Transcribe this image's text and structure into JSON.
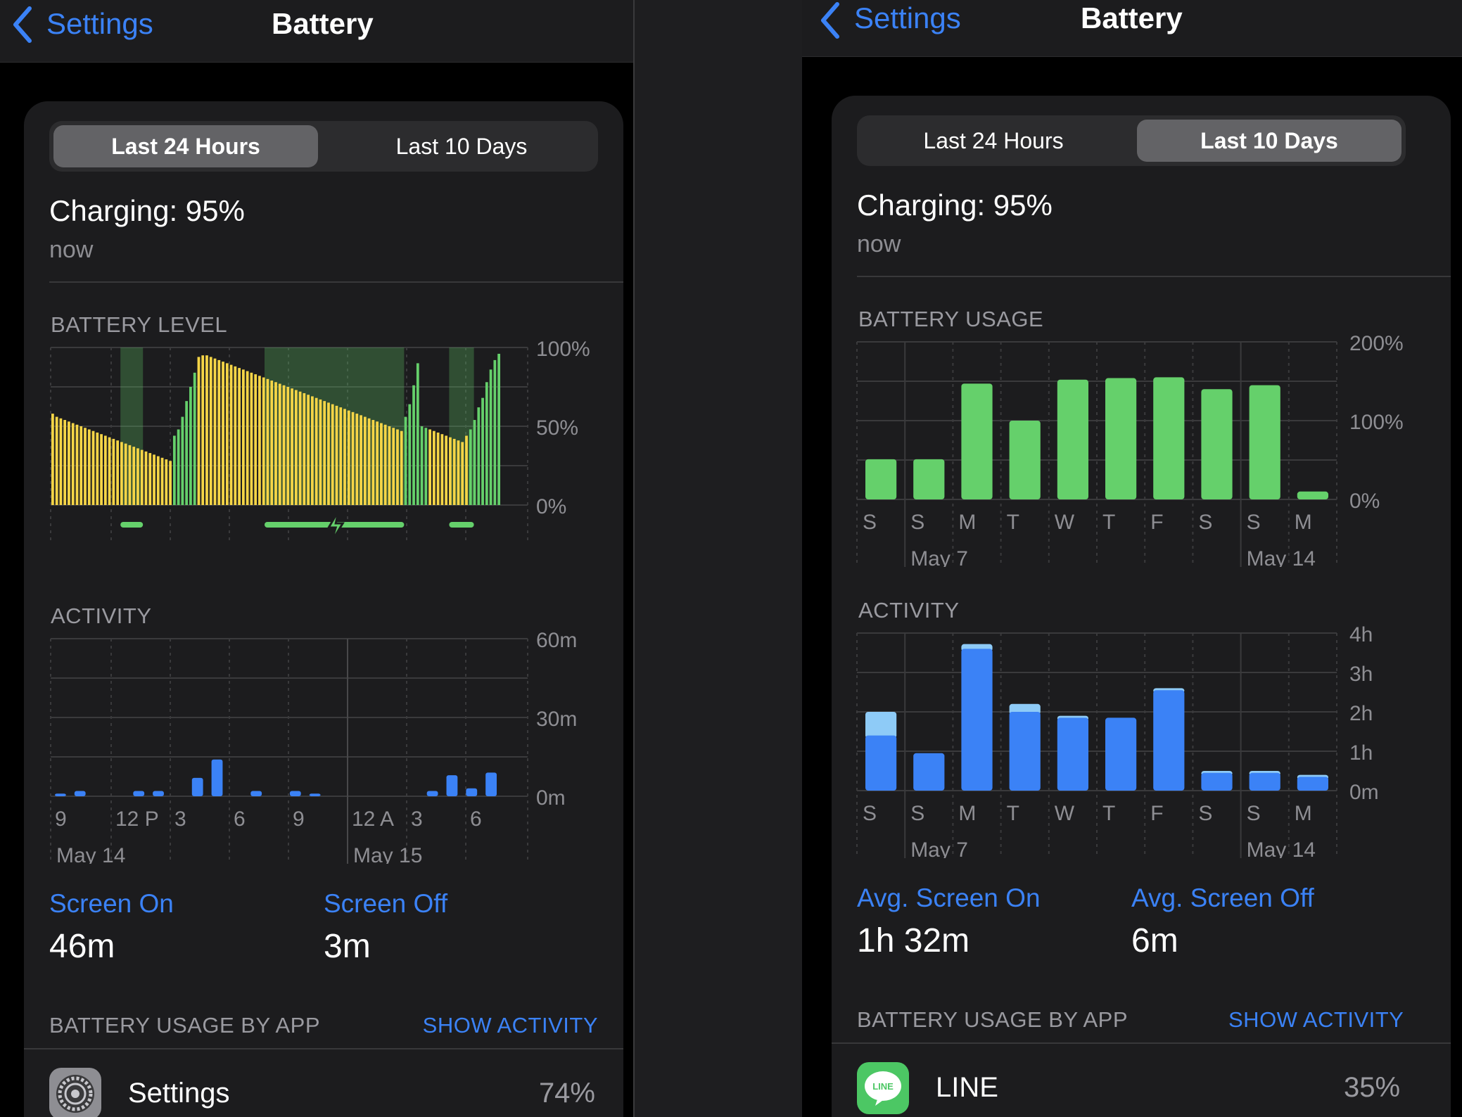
{
  "left": {
    "nav": {
      "back_label": "Settings",
      "title": "Battery"
    },
    "tabs": [
      "Last 24 Hours",
      "Last 10 Days"
    ],
    "active_tab": 0,
    "status": {
      "title": "Charging: 95%",
      "time": "now"
    },
    "battery_level": {
      "header": "BATTERY LEVEL",
      "y_ticks": [
        "100%",
        "50%",
        "0%"
      ],
      "x_ticks": [
        "9",
        "12 P",
        "3",
        "6",
        "9",
        "12 A",
        "3",
        "6"
      ]
    },
    "activity": {
      "header": "ACTIVITY",
      "y_ticks": [
        "60m",
        "30m",
        "0m"
      ],
      "x_ticks": [
        "9",
        "12 P",
        "3",
        "6",
        "9",
        "12 A",
        "3",
        "6"
      ],
      "dates": [
        "May 14",
        "May 15"
      ]
    },
    "stats": [
      {
        "label": "Screen On",
        "value": "46m"
      },
      {
        "label": "Screen Off",
        "value": "3m"
      }
    ],
    "apps_header": "BATTERY USAGE BY APP",
    "show_activity": "SHOW ACTIVITY",
    "app": {
      "name": "Settings",
      "percent": "74%",
      "icon": "settings-gear-icon"
    }
  },
  "right": {
    "nav": {
      "back_label": "Settings",
      "title": "Battery"
    },
    "tabs": [
      "Last 24 Hours",
      "Last 10 Days"
    ],
    "active_tab": 1,
    "status": {
      "title": "Charging: 95%",
      "time": "now"
    },
    "battery_usage": {
      "header": "BATTERY USAGE",
      "y_ticks": [
        "200%",
        "100%",
        "0%"
      ],
      "x_ticks": [
        "S",
        "S",
        "M",
        "T",
        "W",
        "T",
        "F",
        "S",
        "S",
        "M"
      ],
      "dates": [
        "May 7",
        "May 14"
      ]
    },
    "activity": {
      "header": "ACTIVITY",
      "y_ticks": [
        "4h",
        "3h",
        "2h",
        "1h",
        "0m"
      ],
      "x_ticks": [
        "S",
        "S",
        "M",
        "T",
        "W",
        "T",
        "F",
        "S",
        "S",
        "M"
      ],
      "dates": [
        "May 7",
        "May 14"
      ]
    },
    "stats": [
      {
        "label": "Avg. Screen On",
        "value": "1h 32m"
      },
      {
        "label": "Avg. Screen Off",
        "value": "6m"
      }
    ],
    "apps_header": "BATTERY USAGE BY APP",
    "show_activity": "SHOW ACTIVITY",
    "app": {
      "name": "LINE",
      "percent": "35%",
      "icon": "line-app-icon"
    }
  },
  "colors": {
    "accent": "#3b82f6",
    "battery_yellow": "#f5d547",
    "charging_green": "#65d06b",
    "screen_on_blue": "#3b82f6",
    "screen_off_blue": "#8ecbf7"
  },
  "chart_data": [
    {
      "type": "bar",
      "name_key": "left.battery_level",
      "y_unit": "%",
      "ylim": [
        0,
        100
      ],
      "note_series": [
        "battery level",
        "charging"
      ],
      "values": [
        58,
        56,
        55,
        54,
        53,
        52,
        51,
        50,
        49,
        48,
        47,
        46,
        45,
        44,
        43,
        42,
        41,
        40,
        39,
        38,
        37,
        36,
        35,
        34,
        33,
        32,
        31,
        30,
        29,
        28,
        44,
        48,
        56,
        66,
        75,
        84,
        94,
        95,
        95,
        94,
        93,
        92,
        91,
        90,
        89,
        88,
        87,
        86,
        85,
        84,
        83,
        82,
        81,
        80,
        79,
        78,
        77,
        76,
        75,
        74,
        73,
        72,
        71,
        70,
        69,
        68,
        67,
        66,
        65,
        64,
        63,
        62,
        61,
        60,
        59,
        58,
        57,
        56,
        55,
        54,
        53,
        52,
        51,
        50,
        49,
        48,
        47,
        56,
        64,
        76,
        90,
        50,
        49,
        48,
        47,
        46,
        45,
        44,
        43,
        42,
        41,
        40,
        44,
        48,
        54,
        62,
        68,
        78,
        86,
        92,
        96
      ],
      "charging": [
        0,
        0,
        0,
        0,
        0,
        0,
        0,
        0,
        0,
        0,
        0,
        0,
        0,
        0,
        0,
        0,
        0,
        0,
        0,
        0,
        0,
        0,
        0,
        0,
        0,
        0,
        0,
        0,
        0,
        0,
        1,
        1,
        1,
        1,
        1,
        1,
        0,
        0,
        0,
        0,
        0,
        0,
        0,
        0,
        0,
        0,
        0,
        0,
        0,
        0,
        0,
        0,
        0,
        0,
        0,
        0,
        0,
        0,
        0,
        0,
        0,
        0,
        0,
        0,
        0,
        0,
        0,
        0,
        0,
        0,
        0,
        0,
        0,
        0,
        0,
        0,
        0,
        0,
        0,
        0,
        0,
        0,
        0,
        0,
        0,
        0,
        0,
        1,
        1,
        1,
        1,
        1,
        1,
        0,
        0,
        0,
        0,
        0,
        0,
        0,
        0,
        0,
        0,
        1,
        1,
        1,
        1,
        1,
        1,
        1,
        1,
        1
      ],
      "charging_periods": [
        [
          0.155,
          0.205
        ],
        [
          0.475,
          0.785
        ],
        [
          0.885,
          0.94
        ]
      ]
    },
    {
      "type": "bar",
      "name_key": "left.activity",
      "y_unit": "minutes",
      "ylim": [
        0,
        60
      ],
      "series": [
        {
          "values": [
            1,
            2,
            0,
            0,
            2,
            2,
            0,
            7,
            14,
            0,
            2,
            0,
            2,
            1,
            0,
            0,
            0,
            0,
            0,
            2,
            8,
            3,
            9
          ]
        }
      ]
    },
    {
      "type": "bar",
      "name_key": "right.battery_usage",
      "categories": [
        "S",
        "S",
        "M",
        "T",
        "W",
        "T",
        "F",
        "S",
        "S",
        "M"
      ],
      "y_unit": "%",
      "ylim": [
        0,
        200
      ],
      "series": [
        {
          "values": [
            51,
            51,
            147,
            100,
            152,
            154,
            155,
            140,
            145,
            10
          ]
        }
      ]
    },
    {
      "type": "bar",
      "name_key": "right.activity",
      "categories": [
        "S",
        "S",
        "M",
        "T",
        "W",
        "T",
        "F",
        "S",
        "S",
        "M"
      ],
      "y_unit": "hours",
      "ylim": [
        0,
        4
      ],
      "stacked": true,
      "series": [
        {
          "values": [
            1.4,
            0.95,
            3.6,
            2.0,
            1.85,
            1.85,
            2.55,
            0.45,
            0.45,
            0.35
          ]
        },
        {
          "values": [
            0.6,
            0.0,
            0.12,
            0.2,
            0.05,
            0.0,
            0.05,
            0.05,
            0.05,
            0.05
          ]
        }
      ]
    }
  ]
}
